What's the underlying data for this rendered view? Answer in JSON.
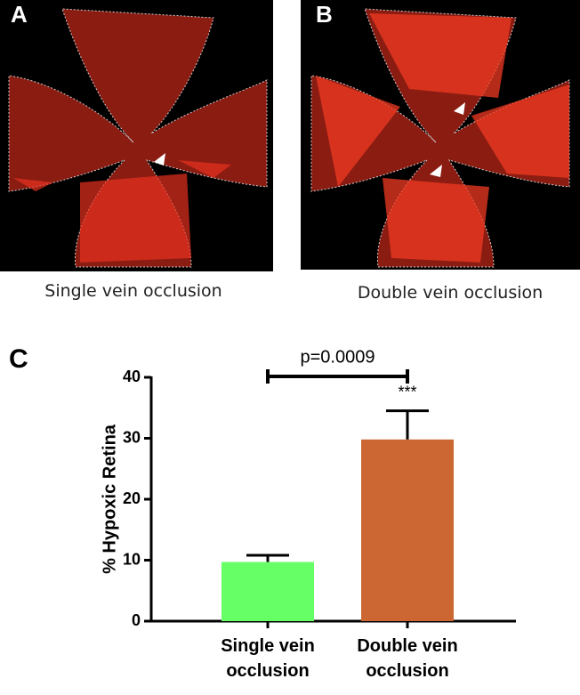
{
  "panels": [
    {
      "label": "A",
      "caption": "Single vein occlusion"
    },
    {
      "label": "B",
      "caption": "Double vein occlusion"
    }
  ],
  "chart_data": {
    "type": "bar",
    "panel_label": "C",
    "ylabel": "% Hypoxic Retina",
    "categories": [
      "Single vein occlusion",
      "Double vein occlusion"
    ],
    "values": [
      9.7,
      29.8
    ],
    "errors": [
      1.1,
      4.7
    ],
    "colors": [
      "#66ff66",
      "#cc6633"
    ],
    "ylim": [
      0,
      40
    ],
    "yticks": [
      0,
      10,
      20,
      30,
      40
    ],
    "annotation": "p=0.0009",
    "significance": "***"
  }
}
